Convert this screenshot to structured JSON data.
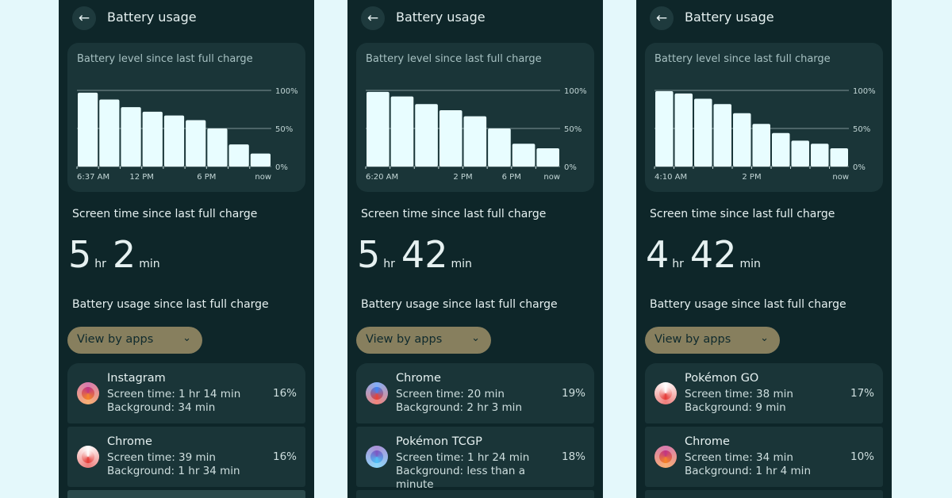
{
  "panels": [
    {
      "header": {
        "title": "Battery usage"
      },
      "chart_data": {
        "type": "bar",
        "title": "Battery level since last full charge",
        "categories": [
          "6:37 AM",
          null,
          null,
          "12 PM",
          null,
          null,
          "6 PM",
          null,
          "now"
        ],
        "values": [
          97,
          88,
          78,
          72,
          67,
          61,
          50,
          29,
          17
        ],
        "color": "#e8fdff",
        "ylim": [
          0,
          100
        ],
        "yticks": [
          {
            "value": 0,
            "label": "0%"
          },
          {
            "value": 50,
            "label": "50%"
          },
          {
            "value": 100,
            "label": "100%"
          }
        ],
        "grid": true
      },
      "screen_time": {
        "heading": "Screen time since last full charge",
        "hours": "5",
        "hours_unit": "hr",
        "minutes": "2",
        "minutes_unit": "min"
      },
      "usage": {
        "heading": "Battery usage since last full charge",
        "filter": "View by apps",
        "apps": [
          {
            "name": "Instagram",
            "screen_time": "Screen time: 1 hr 14 min",
            "background": "Background: 34 min",
            "percent": "16%"
          },
          {
            "name": "Chrome",
            "screen_time": "Screen time: 39 min",
            "background": "Background: 1 hr 34 min",
            "percent": "16%"
          }
        ]
      }
    },
    {
      "header": {
        "title": "Battery usage"
      },
      "chart_data": {
        "type": "bar",
        "title": "Battery level since last full charge",
        "categories": [
          "6:20 AM",
          null,
          null,
          null,
          "2 PM",
          null,
          "6 PM",
          "now"
        ],
        "values": [
          98,
          92,
          82,
          74,
          66,
          50,
          30,
          24
        ],
        "color": "#e8fdff",
        "ylim": [
          0,
          100
        ],
        "yticks": [
          {
            "value": 0,
            "label": "0%"
          },
          {
            "value": 50,
            "label": "50%"
          },
          {
            "value": 100,
            "label": "100%"
          }
        ],
        "grid": true
      },
      "screen_time": {
        "heading": "Screen time since last full charge",
        "hours": "5",
        "hours_unit": "hr",
        "minutes": "42",
        "minutes_unit": "min"
      },
      "usage": {
        "heading": "Battery usage since last full charge",
        "filter": "View by apps",
        "apps": [
          {
            "name": "Chrome",
            "screen_time": "Screen time: 20 min",
            "background": "Background: 2 hr 3 min",
            "percent": "19%"
          },
          {
            "name": "Pokémon TCGP",
            "screen_time": "Screen time: 1 hr 24 min",
            "background": "Background: less than a minute",
            "percent": "18%"
          }
        ]
      }
    },
    {
      "header": {
        "title": "Battery usage"
      },
      "chart_data": {
        "type": "bar",
        "title": "Battery level since last full charge",
        "categories": [
          "4:10 AM",
          null,
          null,
          null,
          null,
          "2 PM",
          null,
          null,
          null,
          "now"
        ],
        "values": [
          99,
          96,
          89,
          82,
          70,
          56,
          44,
          34,
          30,
          24
        ],
        "color": "#e8fdff",
        "ylim": [
          0,
          100
        ],
        "yticks": [
          {
            "value": 0,
            "label": "0%"
          },
          {
            "value": 50,
            "label": "50%"
          },
          {
            "value": 100,
            "label": "100%"
          }
        ],
        "grid": true
      },
      "screen_time": {
        "heading": "Screen time since last full charge",
        "hours": "4",
        "hours_unit": "hr",
        "minutes": "42",
        "minutes_unit": "min"
      },
      "usage": {
        "heading": "Battery usage since last full charge",
        "filter": "View by apps",
        "apps": [
          {
            "name": "Pokémon GO",
            "screen_time": "Screen time: 38 min",
            "background": "Background: 9 min",
            "percent": "17%"
          },
          {
            "name": "Chrome",
            "screen_time": "Screen time: 34 min",
            "background": "Background: 1 hr 4 min",
            "percent": "10%"
          }
        ]
      }
    }
  ]
}
